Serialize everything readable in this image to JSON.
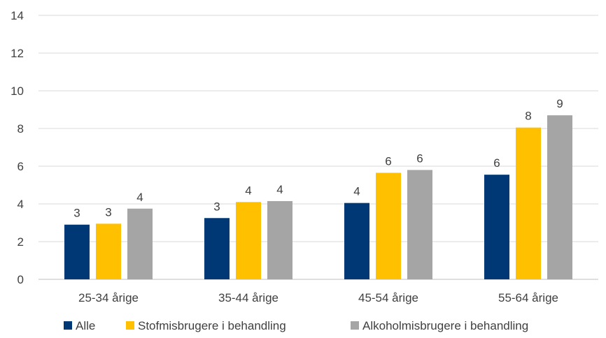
{
  "chart_data": {
    "type": "bar",
    "title": "",
    "xlabel": "",
    "ylabel": "",
    "categories": [
      "25-34 årige",
      "35-44 årige",
      "45-54 årige",
      "55-64 årige"
    ],
    "series": [
      {
        "name": "Alle",
        "color": "#003876",
        "values": [
          2.9,
          3.25,
          4.05,
          5.55
        ],
        "labels": [
          "3",
          "3",
          "4",
          "6"
        ]
      },
      {
        "name": "Stofmisbrugere i behandling",
        "color": "#FFC000",
        "values": [
          2.95,
          4.1,
          5.65,
          8.05
        ],
        "labels": [
          "3",
          "4",
          "6",
          "8"
        ]
      },
      {
        "name": "Alkoholmisbrugere i behandling",
        "color": "#A5A5A5",
        "values": [
          3.75,
          4.15,
          5.8,
          8.7
        ],
        "labels": [
          "4",
          "4",
          "6",
          "9"
        ]
      }
    ],
    "ylim": [
      0,
      14
    ],
    "yticks": [
      "0",
      "2",
      "4",
      "6",
      "8",
      "10",
      "12",
      "14"
    ],
    "grid": true,
    "legend_position": "bottom"
  }
}
